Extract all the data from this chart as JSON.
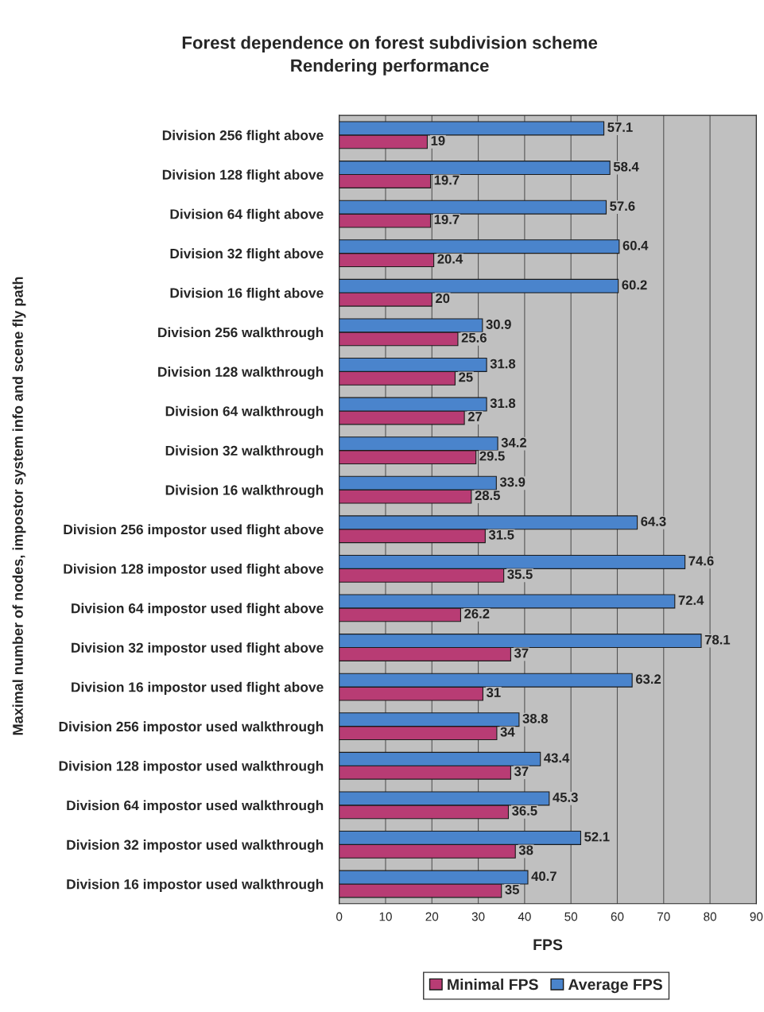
{
  "chart_data": {
    "type": "bar",
    "orientation": "horizontal",
    "title": "Forest dependence on forest subdivision scheme\nRendering performance",
    "xlabel": "FPS",
    "ylabel": "Maximal number of nodes, impostor system info and scene fly path",
    "categories": [
      "Division 256 flight above",
      "Division 128 flight above",
      "Division 64 flight above",
      "Division 32 flight above",
      "Division 16 flight above",
      "Division 256 walkthrough",
      "Division 128 walkthrough",
      "Division 64 walkthrough",
      "Division 32 walkthrough",
      "Division 16 walkthrough",
      "Division 256 impostor used flight above",
      "Division 128 impostor used flight above",
      "Division 64 impostor used flight above",
      "Division 32 impostor used flight above",
      "Division 16 impostor used flight above",
      "Division 256 impostor used walkthrough",
      "Division 128 impostor used walkthrough",
      "Division 64 impostor used walkthrough",
      "Division 32 impostor used walkthrough",
      "Division 16 impostor used walkthrough"
    ],
    "series": [
      {
        "name": "Minimal FPS",
        "color": "#b83c74",
        "values": [
          19,
          19.7,
          19.7,
          20.4,
          20,
          25.6,
          25,
          27,
          29.5,
          28.5,
          31.5,
          35.5,
          26.2,
          37,
          31,
          34,
          37,
          36.5,
          38,
          35
        ]
      },
      {
        "name": "Average FPS",
        "color": "#4a84cc",
        "values": [
          57.1,
          58.4,
          57.6,
          60.4,
          60.2,
          30.9,
          31.8,
          31.8,
          34.2,
          33.9,
          64.3,
          74.6,
          72.4,
          78.1,
          63.2,
          38.8,
          43.4,
          45.3,
          52.1,
          40.7
        ]
      }
    ],
    "xlim": [
      0,
      90
    ],
    "xticks": [
      0,
      10,
      20,
      30,
      40,
      50,
      60,
      70,
      80,
      90
    ],
    "grid": "x",
    "legend": "bottom",
    "data_labels": true
  }
}
